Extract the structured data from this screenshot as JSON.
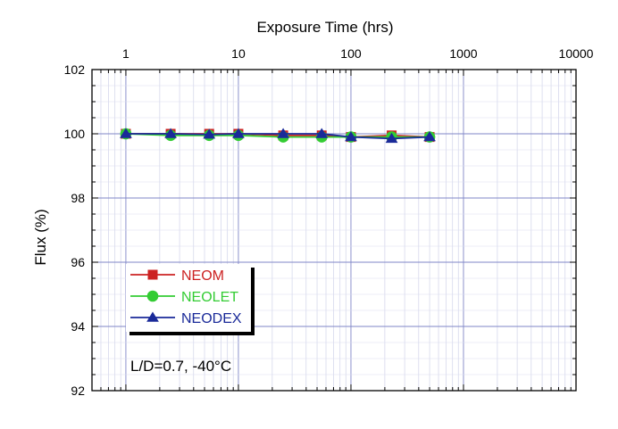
{
  "chart_data": {
    "type": "line",
    "xlabel": "Exposure Time (hrs)",
    "ylabel": "Flux (%)",
    "xscale": "log",
    "xlim": [
      0.5,
      10000
    ],
    "ylim": [
      92,
      102
    ],
    "xticks": [
      1,
      10,
      100,
      1000,
      10000
    ],
    "xtick_labels": [
      "1",
      "10",
      "100",
      "1000",
      "10000"
    ],
    "yticks": [
      92,
      94,
      96,
      98,
      100,
      102
    ],
    "ytick_labels": [
      "92",
      "94",
      "96",
      "98",
      "100",
      "102"
    ],
    "grid": true,
    "x_axis_position": "top",
    "legend_position": "bottom-left",
    "series": [
      {
        "name": "NEOM",
        "color": "#cc2222",
        "marker": "square",
        "x": [
          1,
          2.5,
          5.5,
          10,
          25,
          55,
          100,
          230,
          500
        ],
        "y": [
          100.0,
          100.0,
          100.0,
          100.0,
          99.95,
          99.95,
          99.9,
          99.95,
          99.9
        ]
      },
      {
        "name": "NEOLET",
        "color": "#33cc33",
        "marker": "circle",
        "x": [
          1,
          2.5,
          5.5,
          10,
          25,
          55,
          100,
          230,
          500
        ],
        "y": [
          100.0,
          99.95,
          99.95,
          99.95,
          99.9,
          99.9,
          99.9,
          99.9,
          99.9
        ]
      },
      {
        "name": "NEODEX",
        "color": "#1a2a99",
        "marker": "triangle",
        "x": [
          1,
          2.5,
          5.5,
          10,
          25,
          55,
          100,
          230,
          500
        ],
        "y": [
          100.0,
          100.0,
          99.98,
          100.0,
          100.0,
          100.0,
          99.9,
          99.85,
          99.9
        ]
      }
    ],
    "annotation": "L/D=0.7, -40°C"
  }
}
